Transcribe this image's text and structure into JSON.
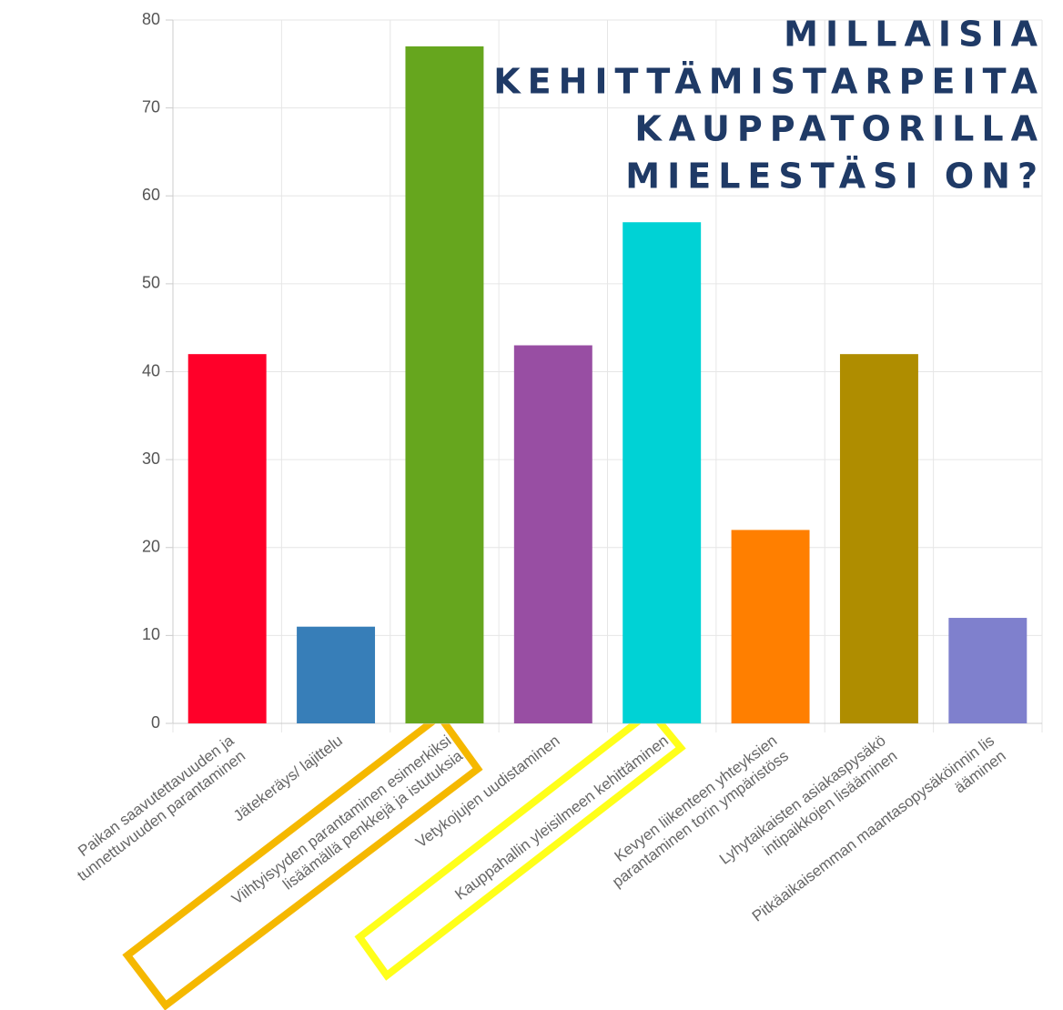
{
  "chart_data": {
    "type": "bar",
    "title": [
      "MILLAISIA",
      "KEHITTÄMISTARPEITA",
      "KAUPPATORILLA",
      "MIELESTÄSI ON?"
    ],
    "categories": [
      [
        "Paikan saavutettavuuden ja",
        "tunnettuvuuden parantaminen"
      ],
      [
        "Jätekeräys/ lajittelu"
      ],
      [
        "Viihtyisyyden parantaminen esimerkiksi",
        "lisäämällä penkkejä ja istutuksia"
      ],
      [
        "Vetykojujen uudistaminen"
      ],
      [
        "Kauppahallin yleisilmeen kehittäminen"
      ],
      [
        "Kevyen liikenteen yhteyksien",
        "parantaminen torin ympäristöss"
      ],
      [
        "Lyhytaikaisten asiakaspysäkö",
        "intipaikkojen lisääminen"
      ],
      [
        "Pitkäaikaisemman maantasopysäköinnin lis",
        "ääminen"
      ]
    ],
    "values": [
      42,
      11,
      77,
      43,
      57,
      22,
      42,
      12
    ],
    "colors": [
      "#ff0029",
      "#377eb8",
      "#66a61e",
      "#984ea3",
      "#00d2d5",
      "#ff7f00",
      "#af8d00",
      "#7f80cd"
    ],
    "ylim": [
      0,
      80
    ],
    "yticks": [
      0,
      10,
      20,
      30,
      40,
      50,
      60,
      70,
      80
    ],
    "grid": true
  }
}
